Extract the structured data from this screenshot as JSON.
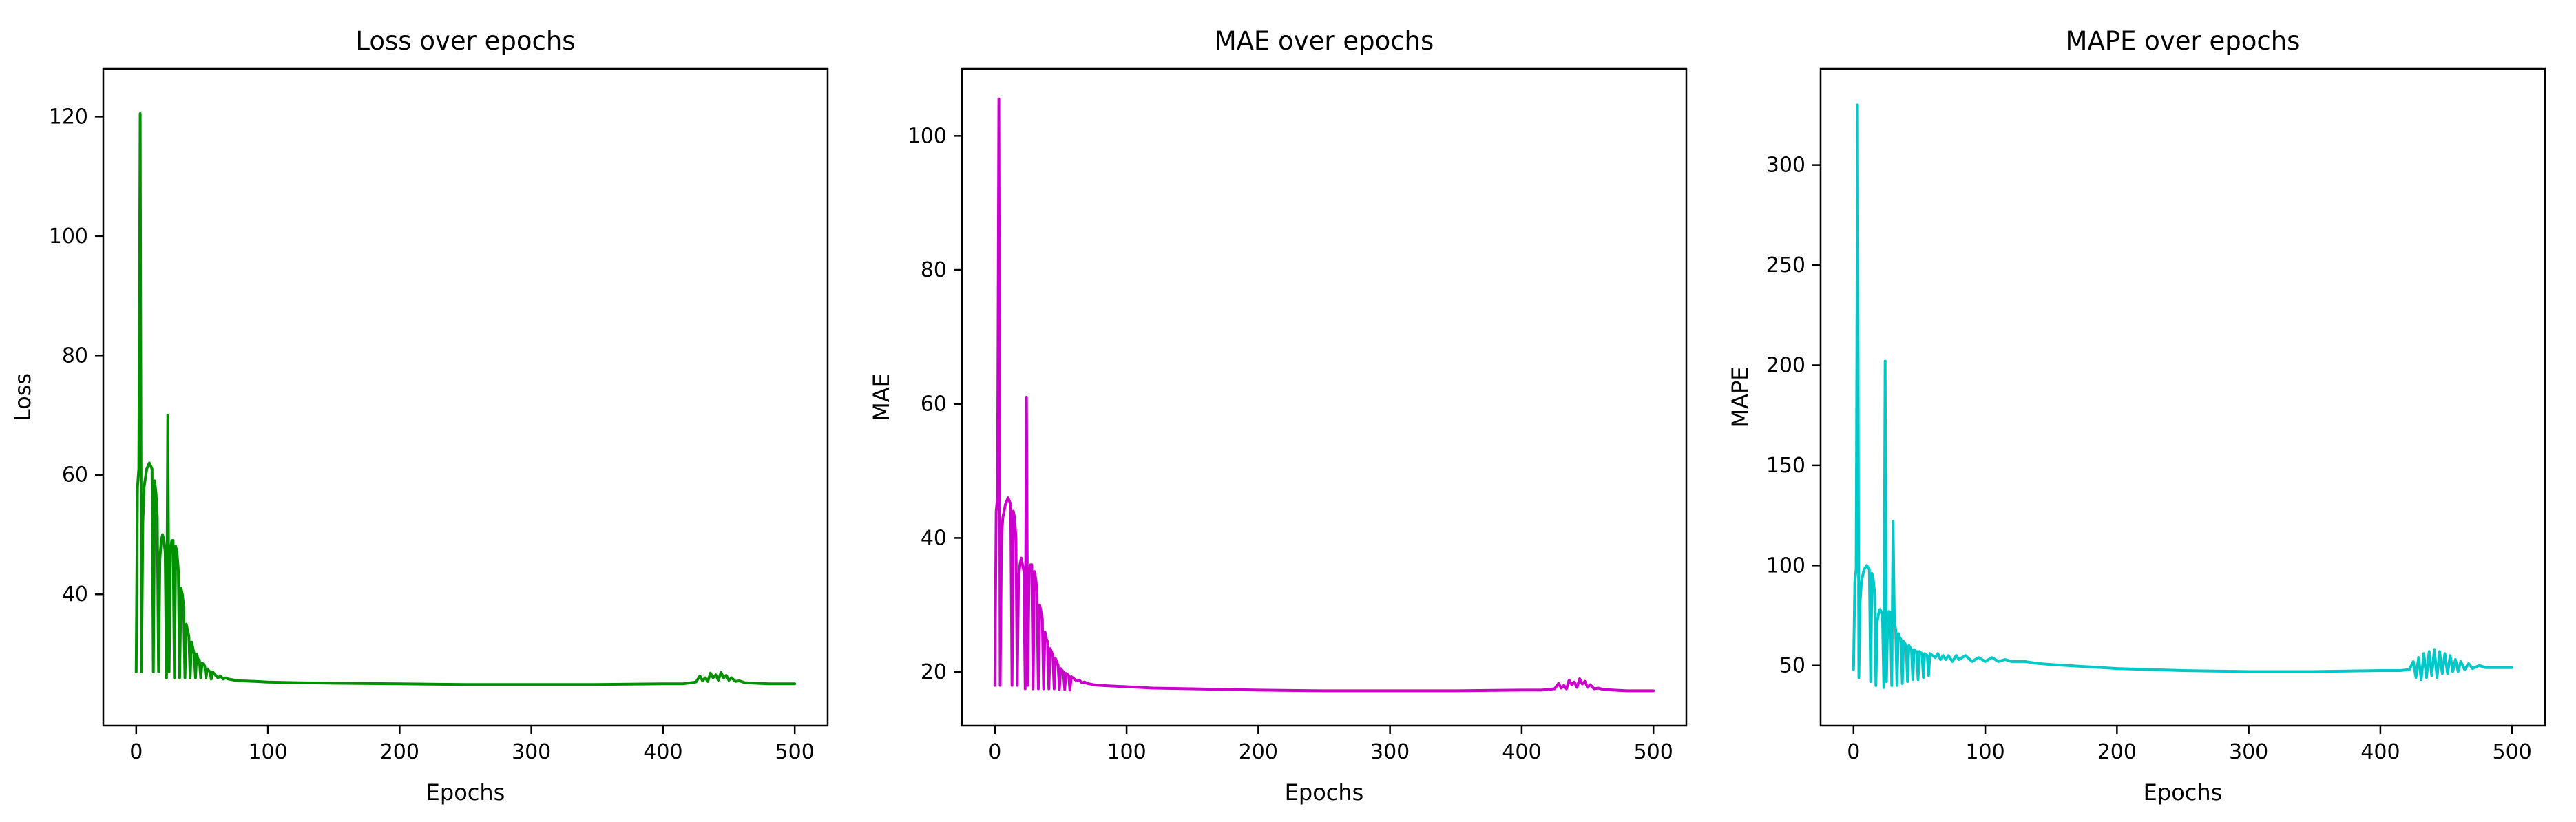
{
  "page": {
    "background": "#ffffff"
  },
  "chart_data": [
    {
      "type": "line",
      "title": "Loss over epochs",
      "xlabel": "Epochs",
      "ylabel": "Loss",
      "series_name": "loss-line",
      "color": "#009000",
      "xlim": [
        -25,
        525
      ],
      "ylim": [
        18,
        128
      ],
      "xticks": [
        0,
        100,
        200,
        300,
        400,
        500
      ],
      "yticks": [
        40,
        60,
        80,
        100,
        120
      ],
      "grid": false,
      "points": [
        [
          0,
          27
        ],
        [
          1,
          58
        ],
        [
          2,
          61
        ],
        [
          2.5,
          90
        ],
        [
          3,
          120.5
        ],
        [
          4,
          27
        ],
        [
          5,
          52
        ],
        [
          6,
          58
        ],
        [
          8,
          61
        ],
        [
          10,
          62
        ],
        [
          12,
          61
        ],
        [
          13,
          27
        ],
        [
          14,
          59
        ],
        [
          15,
          57
        ],
        [
          16,
          53
        ],
        [
          17,
          27
        ],
        [
          18,
          46
        ],
        [
          19,
          49
        ],
        [
          20,
          50
        ],
        [
          21,
          49
        ],
        [
          22,
          47
        ],
        [
          23,
          26
        ],
        [
          24,
          70
        ],
        [
          25,
          27
        ],
        [
          26,
          47
        ],
        [
          27,
          49
        ],
        [
          28,
          49
        ],
        [
          29,
          26
        ],
        [
          30,
          48
        ],
        [
          31,
          47
        ],
        [
          32,
          44
        ],
        [
          33,
          26
        ],
        [
          34,
          41
        ],
        [
          35,
          40
        ],
        [
          36,
          38
        ],
        [
          37,
          26
        ],
        [
          38,
          35
        ],
        [
          39,
          34
        ],
        [
          40,
          33
        ],
        [
          41,
          26
        ],
        [
          42,
          32
        ],
        [
          43,
          31
        ],
        [
          44,
          30
        ],
        [
          45,
          26
        ],
        [
          46,
          30
        ],
        [
          47,
          29
        ],
        [
          48,
          29
        ],
        [
          49,
          26
        ],
        [
          50,
          28.5
        ],
        [
          52,
          28
        ],
        [
          53,
          26
        ],
        [
          54,
          27.5
        ],
        [
          56,
          27
        ],
        [
          57,
          25.8
        ],
        [
          58,
          27
        ],
        [
          60,
          26.5
        ],
        [
          62,
          26
        ],
        [
          64,
          26.3
        ],
        [
          66,
          25.8
        ],
        [
          68,
          26
        ],
        [
          70,
          25.8
        ],
        [
          75,
          25.6
        ],
        [
          80,
          25.5
        ],
        [
          90,
          25.4
        ],
        [
          100,
          25.3
        ],
        [
          120,
          25.2
        ],
        [
          150,
          25.1
        ],
        [
          200,
          25
        ],
        [
          250,
          24.9
        ],
        [
          300,
          24.9
        ],
        [
          350,
          24.9
        ],
        [
          400,
          25
        ],
        [
          415,
          25
        ],
        [
          425,
          25.3
        ],
        [
          428,
          26.3
        ],
        [
          430,
          25.5
        ],
        [
          432,
          26
        ],
        [
          434,
          25.4
        ],
        [
          436,
          26.8
        ],
        [
          438,
          26
        ],
        [
          440,
          26.5
        ],
        [
          442,
          25.6
        ],
        [
          444,
          26.9
        ],
        [
          446,
          26
        ],
        [
          448,
          26.4
        ],
        [
          450,
          25.6
        ],
        [
          452,
          26
        ],
        [
          455,
          25.4
        ],
        [
          458,
          25.5
        ],
        [
          462,
          25.2
        ],
        [
          470,
          25.1
        ],
        [
          480,
          25
        ],
        [
          500,
          25
        ]
      ]
    },
    {
      "type": "line",
      "title": "MAE over epochs",
      "xlabel": "Epochs",
      "ylabel": "MAE",
      "series_name": "mae-line",
      "color": "#cc00cc",
      "xlim": [
        -25,
        525
      ],
      "ylim": [
        12,
        110
      ],
      "xticks": [
        0,
        100,
        200,
        300,
        400,
        500
      ],
      "yticks": [
        20,
        40,
        60,
        80,
        100
      ],
      "grid": false,
      "points": [
        [
          0,
          18
        ],
        [
          1,
          44
        ],
        [
          2,
          46
        ],
        [
          2.5,
          75
        ],
        [
          3,
          105.5
        ],
        [
          4,
          18
        ],
        [
          5,
          40
        ],
        [
          6,
          43
        ],
        [
          8,
          45
        ],
        [
          10,
          46
        ],
        [
          12,
          45
        ],
        [
          13,
          18
        ],
        [
          14,
          44
        ],
        [
          15,
          43
        ],
        [
          16,
          40
        ],
        [
          17,
          18
        ],
        [
          18,
          34
        ],
        [
          19,
          36
        ],
        [
          20,
          37
        ],
        [
          21,
          36
        ],
        [
          22,
          35
        ],
        [
          23,
          17.5
        ],
        [
          24,
          61
        ],
        [
          25,
          18
        ],
        [
          26,
          35
        ],
        [
          27,
          36
        ],
        [
          28,
          36
        ],
        [
          29,
          17.5
        ],
        [
          30,
          35
        ],
        [
          31,
          34
        ],
        [
          32,
          32
        ],
        [
          33,
          17.5
        ],
        [
          34,
          30
        ],
        [
          35,
          29
        ],
        [
          36,
          28
        ],
        [
          37,
          17.5
        ],
        [
          38,
          26
        ],
        [
          39,
          25
        ],
        [
          40,
          24.5
        ],
        [
          41,
          17.5
        ],
        [
          42,
          23.5
        ],
        [
          43,
          23
        ],
        [
          44,
          22.5
        ],
        [
          45,
          17.5
        ],
        [
          46,
          22
        ],
        [
          47,
          21.5
        ],
        [
          48,
          21
        ],
        [
          49,
          17.4
        ],
        [
          50,
          20.5
        ],
        [
          52,
          20
        ],
        [
          53,
          17.4
        ],
        [
          54,
          19.8
        ],
        [
          56,
          19.5
        ],
        [
          57,
          17.3
        ],
        [
          58,
          19.3
        ],
        [
          60,
          19
        ],
        [
          62,
          18.7
        ],
        [
          64,
          18.8
        ],
        [
          66,
          18.4
        ],
        [
          68,
          18.5
        ],
        [
          70,
          18.3
        ],
        [
          75,
          18.1
        ],
        [
          80,
          18
        ],
        [
          90,
          17.9
        ],
        [
          100,
          17.8
        ],
        [
          120,
          17.6
        ],
        [
          150,
          17.5
        ],
        [
          200,
          17.3
        ],
        [
          250,
          17.2
        ],
        [
          300,
          17.2
        ],
        [
          350,
          17.2
        ],
        [
          400,
          17.3
        ],
        [
          415,
          17.3
        ],
        [
          425,
          17.5
        ],
        [
          428,
          18.3
        ],
        [
          430,
          17.6
        ],
        [
          432,
          18
        ],
        [
          434,
          17.5
        ],
        [
          436,
          18.8
        ],
        [
          438,
          18.1
        ],
        [
          440,
          18.5
        ],
        [
          442,
          17.7
        ],
        [
          444,
          19
        ],
        [
          446,
          18.2
        ],
        [
          448,
          18.6
        ],
        [
          450,
          17.7
        ],
        [
          452,
          18.1
        ],
        [
          455,
          17.5
        ],
        [
          458,
          17.6
        ],
        [
          462,
          17.4
        ],
        [
          470,
          17.3
        ],
        [
          480,
          17.2
        ],
        [
          500,
          17.2
        ]
      ]
    },
    {
      "type": "line",
      "title": "MAPE over epochs",
      "xlabel": "Epochs",
      "ylabel": "MAPE",
      "series_name": "mape-line",
      "color": "#00c8c8",
      "xlim": [
        -25,
        525
      ],
      "ylim": [
        20,
        348
      ],
      "xticks": [
        0,
        100,
        200,
        300,
        400,
        500
      ],
      "yticks": [
        50,
        100,
        150,
        200,
        250,
        300
      ],
      "grid": false,
      "points": [
        [
          0,
          48
        ],
        [
          1,
          92
        ],
        [
          2,
          98
        ],
        [
          2.5,
          200
        ],
        [
          3,
          330
        ],
        [
          4,
          44
        ],
        [
          5,
          82
        ],
        [
          6,
          92
        ],
        [
          8,
          98
        ],
        [
          10,
          100
        ],
        [
          12,
          98
        ],
        [
          13,
          42
        ],
        [
          14,
          96
        ],
        [
          15,
          93
        ],
        [
          16,
          86
        ],
        [
          17,
          40
        ],
        [
          18,
          72
        ],
        [
          19,
          76
        ],
        [
          20,
          78
        ],
        [
          21,
          77
        ],
        [
          22,
          74
        ],
        [
          23,
          39
        ],
        [
          24,
          202
        ],
        [
          25,
          42
        ],
        [
          26,
          74
        ],
        [
          27,
          77
        ],
        [
          28,
          76
        ],
        [
          29,
          40
        ],
        [
          30,
          122
        ],
        [
          31,
          72
        ],
        [
          32,
          68
        ],
        [
          33,
          40
        ],
        [
          34,
          66
        ],
        [
          35,
          64
        ],
        [
          36,
          63
        ],
        [
          37,
          41
        ],
        [
          38,
          62
        ],
        [
          39,
          61
        ],
        [
          40,
          60
        ],
        [
          41,
          42
        ],
        [
          42,
          60
        ],
        [
          43,
          59
        ],
        [
          44,
          58
        ],
        [
          45,
          43
        ],
        [
          46,
          58
        ],
        [
          47,
          57
        ],
        [
          48,
          57
        ],
        [
          49,
          43
        ],
        [
          50,
          57
        ],
        [
          52,
          56
        ],
        [
          53,
          44
        ],
        [
          54,
          56
        ],
        [
          56,
          55
        ],
        [
          57,
          45
        ],
        [
          58,
          56
        ],
        [
          60,
          55
        ],
        [
          62,
          54
        ],
        [
          64,
          56
        ],
        [
          66,
          53
        ],
        [
          68,
          55
        ],
        [
          70,
          53
        ],
        [
          72,
          55
        ],
        [
          75,
          52
        ],
        [
          78,
          55
        ],
        [
          80,
          53
        ],
        [
          85,
          55
        ],
        [
          90,
          52
        ],
        [
          95,
          54
        ],
        [
          100,
          52
        ],
        [
          105,
          54
        ],
        [
          110,
          52
        ],
        [
          115,
          53
        ],
        [
          120,
          52
        ],
        [
          130,
          52
        ],
        [
          140,
          51
        ],
        [
          150,
          50.5
        ],
        [
          175,
          49.5
        ],
        [
          200,
          48.5
        ],
        [
          250,
          47.5
        ],
        [
          300,
          47
        ],
        [
          350,
          47
        ],
        [
          400,
          47.5
        ],
        [
          415,
          47.5
        ],
        [
          422,
          48
        ],
        [
          425,
          52
        ],
        [
          427,
          44
        ],
        [
          429,
          54
        ],
        [
          431,
          43
        ],
        [
          433,
          56
        ],
        [
          435,
          44
        ],
        [
          437,
          57
        ],
        [
          439,
          45
        ],
        [
          441,
          58
        ],
        [
          443,
          44
        ],
        [
          445,
          57
        ],
        [
          447,
          46
        ],
        [
          449,
          56
        ],
        [
          451,
          46
        ],
        [
          453,
          55
        ],
        [
          455,
          47
        ],
        [
          457,
          53
        ],
        [
          459,
          47
        ],
        [
          461,
          52
        ],
        [
          464,
          48
        ],
        [
          467,
          51
        ],
        [
          470,
          48.5
        ],
        [
          475,
          50
        ],
        [
          480,
          49
        ],
        [
          490,
          49
        ],
        [
          500,
          49
        ]
      ]
    }
  ]
}
